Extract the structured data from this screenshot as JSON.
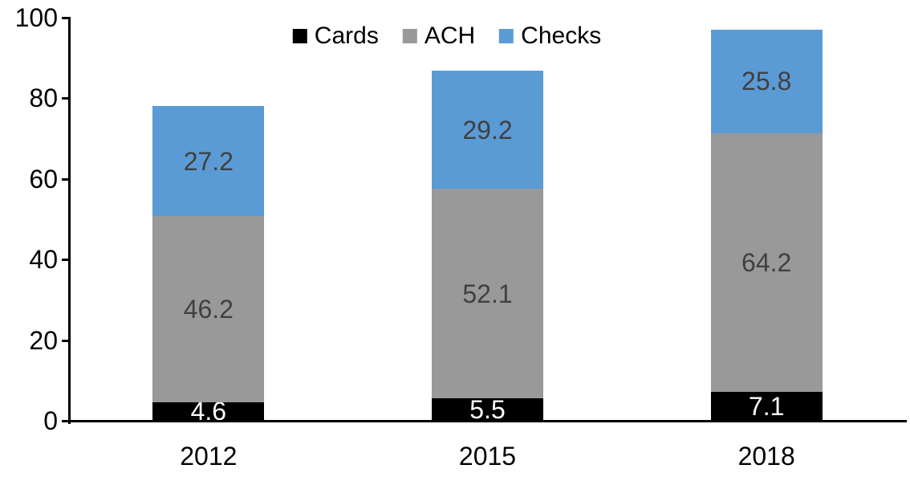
{
  "chart_data": {
    "type": "bar",
    "stacked": true,
    "title": "",
    "xlabel": "",
    "ylabel": "",
    "categories": [
      "2012",
      "2015",
      "2018"
    ],
    "series": [
      {
        "name": "Cards",
        "color": "#000000",
        "label_color": "#ffffff",
        "values": [
          4.6,
          5.5,
          7.1
        ]
      },
      {
        "name": "ACH",
        "color": "#999999",
        "label_color": "#404040",
        "values": [
          46.2,
          52.1,
          64.2
        ]
      },
      {
        "name": "Checks",
        "color": "#5b9bd5",
        "label_color": "#404040",
        "values": [
          27.2,
          29.2,
          25.8
        ]
      }
    ],
    "ylim": [
      0,
      100
    ],
    "yticks": [
      0,
      20,
      40,
      60,
      80,
      100
    ],
    "grid": false,
    "legend_position": "top",
    "data_labels": true,
    "axis_color": "#000000"
  }
}
